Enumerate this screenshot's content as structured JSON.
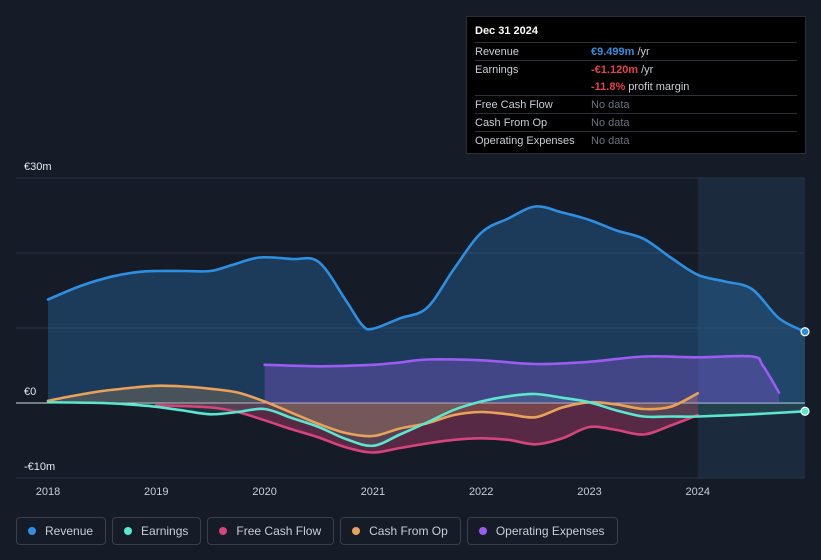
{
  "chart_data": {
    "type": "area",
    "title": "",
    "y_axis": {
      "min": -10,
      "max": 30,
      "unit": "€m",
      "labels": [
        "€30m",
        "€0",
        "-€10m"
      ]
    },
    "x_axis": {
      "min": 2017.85,
      "max": 2024.99,
      "tick_labels": [
        "2018",
        "2019",
        "2020",
        "2021",
        "2022",
        "2023",
        "2024"
      ]
    },
    "forecast_start": 2024.0,
    "series": [
      {
        "name": "Revenue",
        "color": "#2e8fe0",
        "points": [
          [
            2018.0,
            13.8
          ],
          [
            2018.3,
            15.6
          ],
          [
            2018.6,
            16.9
          ],
          [
            2018.85,
            17.5
          ],
          [
            2019.0,
            17.6
          ],
          [
            2019.25,
            17.6
          ],
          [
            2019.5,
            17.6
          ],
          [
            2019.7,
            18.4
          ],
          [
            2019.95,
            19.4
          ],
          [
            2020.25,
            19.2
          ],
          [
            2020.5,
            18.8
          ],
          [
            2020.75,
            13.7
          ],
          [
            2020.9,
            10.4
          ],
          [
            2021.0,
            9.9
          ],
          [
            2021.25,
            11.3
          ],
          [
            2021.5,
            12.7
          ],
          [
            2021.75,
            17.9
          ],
          [
            2022.0,
            22.7
          ],
          [
            2022.25,
            24.6
          ],
          [
            2022.5,
            26.2
          ],
          [
            2022.75,
            25.4
          ],
          [
            2023.0,
            24.4
          ],
          [
            2023.25,
            23.0
          ],
          [
            2023.5,
            21.9
          ],
          [
            2023.75,
            19.4
          ],
          [
            2024.0,
            17.1
          ],
          [
            2024.25,
            16.2
          ],
          [
            2024.5,
            15.2
          ],
          [
            2024.75,
            11.3
          ],
          [
            2024.99,
            9.5
          ]
        ]
      },
      {
        "name": "Earnings",
        "color": "#5ce6cf",
        "points": [
          [
            2018.0,
            0.1
          ],
          [
            2018.5,
            0.0
          ],
          [
            2018.85,
            -0.3
          ],
          [
            2019.0,
            -0.5
          ],
          [
            2019.25,
            -1.0
          ],
          [
            2019.5,
            -1.5
          ],
          [
            2019.75,
            -1.2
          ],
          [
            2020.0,
            -0.8
          ],
          [
            2020.25,
            -2.0
          ],
          [
            2020.5,
            -3.2
          ],
          [
            2020.75,
            -4.8
          ],
          [
            2021.0,
            -5.7
          ],
          [
            2021.25,
            -4.2
          ],
          [
            2021.5,
            -2.6
          ],
          [
            2021.75,
            -0.9
          ],
          [
            2022.0,
            0.2
          ],
          [
            2022.25,
            0.9
          ],
          [
            2022.5,
            1.2
          ],
          [
            2022.75,
            0.7
          ],
          [
            2023.0,
            0.1
          ],
          [
            2023.25,
            -1.0
          ],
          [
            2023.5,
            -1.8
          ],
          [
            2023.75,
            -1.8
          ],
          [
            2024.0,
            -1.8
          ],
          [
            2024.5,
            -1.5
          ],
          [
            2024.99,
            -1.1
          ]
        ]
      },
      {
        "name": "Free Cash Flow",
        "color": "#d6457a",
        "points": [
          [
            2019.0,
            -0.3
          ],
          [
            2019.5,
            -0.6
          ],
          [
            2019.75,
            -1.2
          ],
          [
            2020.0,
            -2.3
          ],
          [
            2020.25,
            -3.5
          ],
          [
            2020.5,
            -4.6
          ],
          [
            2020.75,
            -5.9
          ],
          [
            2021.0,
            -6.6
          ],
          [
            2021.25,
            -6.0
          ],
          [
            2021.5,
            -5.4
          ],
          [
            2021.75,
            -4.9
          ],
          [
            2022.0,
            -4.7
          ],
          [
            2022.25,
            -4.9
          ],
          [
            2022.5,
            -5.5
          ],
          [
            2022.75,
            -4.7
          ],
          [
            2023.0,
            -3.2
          ],
          [
            2023.25,
            -3.6
          ],
          [
            2023.5,
            -4.2
          ],
          [
            2023.75,
            -3.0
          ],
          [
            2024.0,
            -1.6
          ]
        ]
      },
      {
        "name": "Cash From Op",
        "color": "#e8a35b",
        "points": [
          [
            2018.0,
            0.3
          ],
          [
            2018.25,
            1.0
          ],
          [
            2018.5,
            1.6
          ],
          [
            2018.75,
            2.0
          ],
          [
            2019.0,
            2.3
          ],
          [
            2019.25,
            2.2
          ],
          [
            2019.5,
            1.9
          ],
          [
            2019.75,
            1.4
          ],
          [
            2020.0,
            0.2
          ],
          [
            2020.25,
            -1.3
          ],
          [
            2020.5,
            -2.8
          ],
          [
            2020.75,
            -4.0
          ],
          [
            2021.0,
            -4.4
          ],
          [
            2021.25,
            -3.4
          ],
          [
            2021.5,
            -2.7
          ],
          [
            2021.75,
            -1.6
          ],
          [
            2022.0,
            -1.2
          ],
          [
            2022.25,
            -1.5
          ],
          [
            2022.5,
            -1.9
          ],
          [
            2022.75,
            -0.6
          ],
          [
            2023.0,
            0.1
          ],
          [
            2023.25,
            -0.2
          ],
          [
            2023.5,
            -0.8
          ],
          [
            2023.75,
            -0.5
          ],
          [
            2024.0,
            1.3
          ]
        ]
      },
      {
        "name": "Operating Expenses",
        "color": "#9b5cf0",
        "points": [
          [
            2020.0,
            5.1
          ],
          [
            2020.5,
            4.9
          ],
          [
            2021.0,
            5.1
          ],
          [
            2021.25,
            5.4
          ],
          [
            2021.5,
            5.8
          ],
          [
            2022.0,
            5.7
          ],
          [
            2022.5,
            5.2
          ],
          [
            2023.0,
            5.5
          ],
          [
            2023.5,
            6.2
          ],
          [
            2024.0,
            6.1
          ],
          [
            2024.5,
            6.2
          ],
          [
            2024.6,
            5.0
          ],
          [
            2024.75,
            1.4
          ]
        ]
      }
    ],
    "tooltip": {
      "date": "Dec 31 2024",
      "rows": [
        {
          "label": "Revenue",
          "value": "€9.499m",
          "unit": "/yr",
          "style": "blue"
        },
        {
          "label": "Earnings",
          "value": "-€1.120m",
          "unit": "/yr",
          "style": "red"
        },
        {
          "label": "",
          "value": "-11.8%",
          "unit": "profit margin",
          "style": "red"
        },
        {
          "label": "Free Cash Flow",
          "value": "No data",
          "unit": "",
          "style": "muted"
        },
        {
          "label": "Cash From Op",
          "value": "No data",
          "unit": "",
          "style": "muted"
        },
        {
          "label": "Operating Expenses",
          "value": "No data",
          "unit": "",
          "style": "muted"
        }
      ]
    }
  },
  "legend": [
    {
      "label": "Revenue",
      "color": "#2e8fe0"
    },
    {
      "label": "Earnings",
      "color": "#5ce6cf"
    },
    {
      "label": "Free Cash Flow",
      "color": "#d6457a"
    },
    {
      "label": "Cash From Op",
      "color": "#e8a35b"
    },
    {
      "label": "Operating Expenses",
      "color": "#9b5cf0"
    }
  ]
}
